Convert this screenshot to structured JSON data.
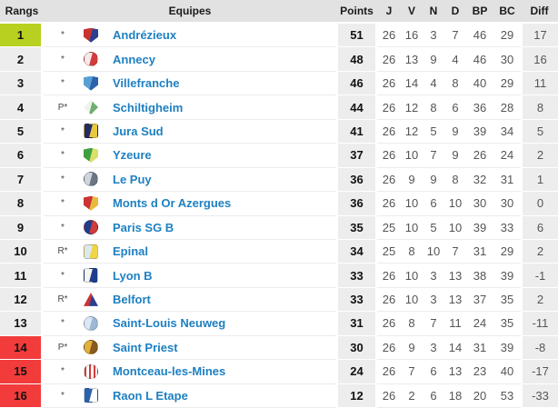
{
  "colors": {
    "promotion_green": "#b8d01f",
    "relegation_red": "#f23b3b",
    "team_link_blue": "#1e80c2",
    "header_bg": "#e2e2e2",
    "shaded_col_bg": "#ededed"
  },
  "table": {
    "headers": {
      "rank": "Rangs",
      "team": "Equipes",
      "points": "Points",
      "j": "J",
      "v": "V",
      "n": "N",
      "d": "D",
      "bp": "BP",
      "bc": "BC",
      "diff": "Diff"
    },
    "rows": [
      {
        "rank": 1,
        "highlight": "top",
        "marker": "*",
        "team": "Andrézieux",
        "points": 51,
        "j": 26,
        "v": 16,
        "n": 3,
        "d": 7,
        "bp": 46,
        "bc": 29,
        "diff": 17,
        "logo": {
          "shape": "shield",
          "c1": "#c8322e",
          "c2": "#2b3f8e"
        }
      },
      {
        "rank": 2,
        "highlight": "none",
        "marker": "*",
        "team": "Annecy",
        "points": 48,
        "j": 26,
        "v": 13,
        "n": 9,
        "d": 4,
        "bp": 46,
        "bc": 30,
        "diff": 16,
        "logo": {
          "shape": "circle",
          "c1": "#f6e9e9",
          "c2": "#d23c3c"
        }
      },
      {
        "rank": 3,
        "highlight": "none",
        "marker": "*",
        "team": "Villefranche",
        "points": 46,
        "j": 26,
        "v": 14,
        "n": 4,
        "d": 8,
        "bp": 40,
        "bc": 29,
        "diff": 11,
        "logo": {
          "shape": "shield",
          "c1": "#5a9fd4",
          "c2": "#2b62ae"
        }
      },
      {
        "rank": 4,
        "highlight": "none",
        "marker": "P*",
        "team": "Schiltigheim",
        "points": 44,
        "j": 26,
        "v": 12,
        "n": 8,
        "d": 6,
        "bp": 36,
        "bc": 28,
        "diff": 8,
        "logo": {
          "shape": "diamond",
          "c1": "#eef4ec",
          "c2": "#6fae6f"
        }
      },
      {
        "rank": 5,
        "highlight": "none",
        "marker": "*",
        "team": "Jura Sud",
        "points": 41,
        "j": 26,
        "v": 12,
        "n": 5,
        "d": 9,
        "bp": 39,
        "bc": 34,
        "diff": 5,
        "logo": {
          "shape": "square",
          "c1": "#222b66",
          "c2": "#e8c93e"
        }
      },
      {
        "rank": 6,
        "highlight": "none",
        "marker": "*",
        "team": "Yzeure",
        "points": 37,
        "j": 26,
        "v": 10,
        "n": 7,
        "d": 9,
        "bp": 26,
        "bc": 24,
        "diff": 2,
        "logo": {
          "shape": "shield",
          "c1": "#3f9e3f",
          "c2": "#d8e06a"
        }
      },
      {
        "rank": 7,
        "highlight": "none",
        "marker": "*",
        "team": "Le Puy",
        "points": 36,
        "j": 26,
        "v": 9,
        "n": 9,
        "d": 8,
        "bp": 32,
        "bc": 31,
        "diff": 1,
        "logo": {
          "shape": "circle",
          "c1": "#cfd6de",
          "c2": "#6b7685"
        }
      },
      {
        "rank": 8,
        "highlight": "none",
        "marker": "*",
        "team": "Monts d Or Azergues",
        "points": 36,
        "j": 26,
        "v": 10,
        "n": 6,
        "d": 10,
        "bp": 30,
        "bc": 30,
        "diff": 0,
        "logo": {
          "shape": "shield",
          "c1": "#c93434",
          "c2": "#e9b93c"
        }
      },
      {
        "rank": 9,
        "highlight": "none",
        "marker": "*",
        "team": "Paris SG B",
        "points": 35,
        "j": 25,
        "v": 10,
        "n": 5,
        "d": 10,
        "bp": 39,
        "bc": 33,
        "diff": 6,
        "logo": {
          "shape": "circle",
          "c1": "#1c3e8c",
          "c2": "#d03c3c"
        }
      },
      {
        "rank": 10,
        "highlight": "none",
        "marker": "R*",
        "team": "Epinal",
        "points": 34,
        "j": 25,
        "v": 8,
        "n": 10,
        "d": 7,
        "bp": 31,
        "bc": 29,
        "diff": 2,
        "logo": {
          "shape": "square",
          "c1": "#dce9f5",
          "c2": "#f0d549"
        }
      },
      {
        "rank": 11,
        "highlight": "none",
        "marker": "*",
        "team": "Lyon B",
        "points": 33,
        "j": 26,
        "v": 10,
        "n": 3,
        "d": 13,
        "bp": 38,
        "bc": 39,
        "diff": -1,
        "logo": {
          "shape": "square",
          "c1": "#f5f5f0",
          "c2": "#1c3e8c"
        }
      },
      {
        "rank": 12,
        "highlight": "none",
        "marker": "R*",
        "team": "Belfort",
        "points": 33,
        "j": 26,
        "v": 10,
        "n": 3,
        "d": 13,
        "bp": 37,
        "bc": 35,
        "diff": 2,
        "logo": {
          "shape": "triangle",
          "c1": "#c93434",
          "c2": "#2b3f8e"
        }
      },
      {
        "rank": 13,
        "highlight": "none",
        "marker": "*",
        "team": "Saint-Louis Neuweg",
        "points": 31,
        "j": 26,
        "v": 8,
        "n": 7,
        "d": 11,
        "bp": 24,
        "bc": 35,
        "diff": -11,
        "logo": {
          "shape": "circle",
          "c1": "#dce9f5",
          "c2": "#9db9d6"
        }
      },
      {
        "rank": 14,
        "highlight": "bottom",
        "marker": "P*",
        "team": "Saint Priest",
        "points": 30,
        "j": 26,
        "v": 9,
        "n": 3,
        "d": 14,
        "bp": 31,
        "bc": 39,
        "diff": -8,
        "logo": {
          "shape": "circle",
          "c1": "#e0b23a",
          "c2": "#8a5a20"
        }
      },
      {
        "rank": 15,
        "highlight": "bottom",
        "marker": "*",
        "team": "Montceau-les-Mines",
        "points": 24,
        "j": 26,
        "v": 7,
        "n": 6,
        "d": 13,
        "bp": 23,
        "bc": 40,
        "diff": -17,
        "logo": {
          "shape": "stripes",
          "c1": "#ffffff",
          "c2": "#d23c3c"
        }
      },
      {
        "rank": 16,
        "highlight": "bottom",
        "marker": "*",
        "team": "Raon L Etape",
        "points": 12,
        "j": 26,
        "v": 2,
        "n": 6,
        "d": 18,
        "bp": 20,
        "bc": 53,
        "diff": -33,
        "logo": {
          "shape": "square",
          "c1": "#2b62ae",
          "c2": "#ffffff"
        }
      }
    ]
  }
}
